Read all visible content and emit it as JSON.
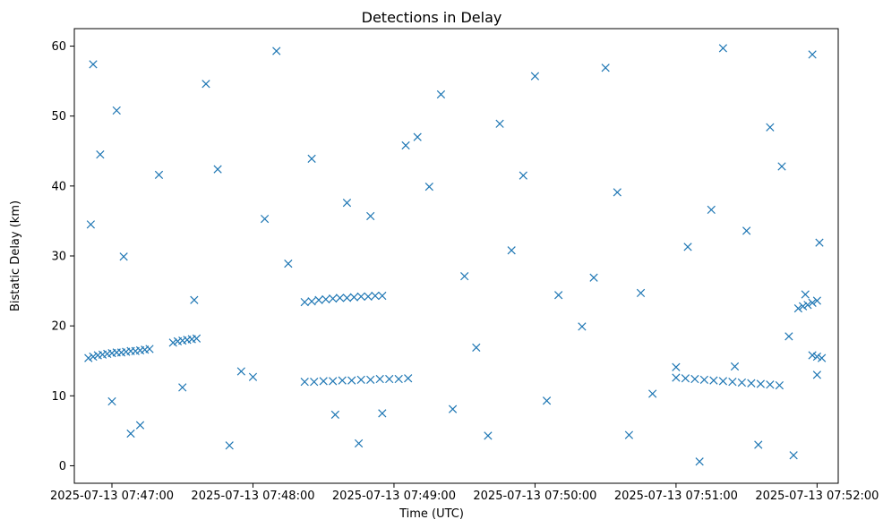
{
  "chart_data": {
    "type": "scatter",
    "title": "Detections in Delay",
    "xlabel": "Time (UTC)",
    "ylabel": "Bistatic Delay (km)",
    "marker": "x",
    "color": "#1f77b4",
    "grid": false,
    "legend": "none",
    "xlim": [
      "2025-07-13 07:46:44",
      "2025-07-13 07:52:09"
    ],
    "ylim": [
      -2.5,
      62.5
    ],
    "x_ticks": [
      "2025-07-13 07:47:00",
      "2025-07-13 07:48:00",
      "2025-07-13 07:49:00",
      "2025-07-13 07:50:00",
      "2025-07-13 07:51:00",
      "2025-07-13 07:52:00"
    ],
    "y_ticks": [
      "0",
      "10",
      "20",
      "30",
      "40",
      "50",
      "60"
    ],
    "series": [
      {
        "x": [
          "2025-07-13 07:46:50",
          "2025-07-13 07:46:52",
          "2025-07-13 07:46:54",
          "2025-07-13 07:46:56",
          "2025-07-13 07:46:58",
          "2025-07-13 07:47:00",
          "2025-07-13 07:47:02",
          "2025-07-13 07:47:04",
          "2025-07-13 07:47:06",
          "2025-07-13 07:47:08",
          "2025-07-13 07:47:10",
          "2025-07-13 07:47:12",
          "2025-07-13 07:47:14",
          "2025-07-13 07:47:16",
          "2025-07-13 07:47:26",
          "2025-07-13 07:47:28",
          "2025-07-13 07:47:30",
          "2025-07-13 07:47:32",
          "2025-07-13 07:47:34",
          "2025-07-13 07:47:36",
          "2025-07-13 07:48:22",
          "2025-07-13 07:48:25",
          "2025-07-13 07:48:28",
          "2025-07-13 07:48:31",
          "2025-07-13 07:48:34",
          "2025-07-13 07:48:37",
          "2025-07-13 07:48:40",
          "2025-07-13 07:48:43",
          "2025-07-13 07:48:46",
          "2025-07-13 07:48:49",
          "2025-07-13 07:48:52",
          "2025-07-13 07:48:55",
          "2025-07-13 07:48:22",
          "2025-07-13 07:48:26",
          "2025-07-13 07:48:30",
          "2025-07-13 07:48:34",
          "2025-07-13 07:48:38",
          "2025-07-13 07:48:42",
          "2025-07-13 07:48:46",
          "2025-07-13 07:48:50",
          "2025-07-13 07:48:54",
          "2025-07-13 07:48:58",
          "2025-07-13 07:49:02",
          "2025-07-13 07:49:06",
          "2025-07-13 07:51:00",
          "2025-07-13 07:51:04",
          "2025-07-13 07:51:08",
          "2025-07-13 07:51:12",
          "2025-07-13 07:51:16",
          "2025-07-13 07:51:20",
          "2025-07-13 07:51:24",
          "2025-07-13 07:51:28",
          "2025-07-13 07:51:32",
          "2025-07-13 07:51:36",
          "2025-07-13 07:51:40",
          "2025-07-13 07:51:44",
          "2025-07-13 07:51:52",
          "2025-07-13 07:51:54",
          "2025-07-13 07:51:56",
          "2025-07-13 07:51:58",
          "2025-07-13 07:52:00",
          "2025-07-13 07:51:58",
          "2025-07-13 07:52:00",
          "2025-07-13 07:52:02",
          "2025-07-13 07:46:52",
          "2025-07-13 07:47:02",
          "2025-07-13 07:47:40",
          "2025-07-13 07:48:10",
          "2025-07-13 07:49:05",
          "2025-07-13 07:49:20",
          "2025-07-13 07:49:45",
          "2025-07-13 07:50:00",
          "2025-07-13 07:50:30",
          "2025-07-13 07:51:20",
          "2025-07-13 07:51:40",
          "2025-07-13 07:51:58",
          "2025-07-13 07:46:51",
          "2025-07-13 07:47:20",
          "2025-07-13 07:48:05",
          "2025-07-13 07:48:40",
          "2025-07-13 07:49:15",
          "2025-07-13 07:49:50",
          "2025-07-13 07:50:25",
          "2025-07-13 07:51:05",
          "2025-07-13 07:51:30",
          "2025-07-13 07:52:01",
          "2025-07-13 07:47:05",
          "2025-07-13 07:47:35",
          "2025-07-13 07:48:15",
          "2025-07-13 07:48:50",
          "2025-07-13 07:49:30",
          "2025-07-13 07:50:10",
          "2025-07-13 07:50:45",
          "2025-07-13 07:51:25",
          "2025-07-13 07:51:55",
          "2025-07-13 07:47:08",
          "2025-07-13 07:47:50",
          "2025-07-13 07:48:45",
          "2025-07-13 07:49:40",
          "2025-07-13 07:50:40",
          "2025-07-13 07:51:10",
          "2025-07-13 07:51:50",
          "2025-07-13 07:47:00",
          "2025-07-13 07:47:30",
          "2025-07-13 07:48:00",
          "2025-07-13 07:48:35",
          "2025-07-13 07:49:25",
          "2025-07-13 07:50:05",
          "2025-07-13 07:50:50",
          "2025-07-13 07:51:35",
          "2025-07-13 07:52:00",
          "2025-07-13 07:46:55",
          "2025-07-13 07:47:45",
          "2025-07-13 07:48:25",
          "2025-07-13 07:49:10",
          "2025-07-13 07:49:55",
          "2025-07-13 07:50:35",
          "2025-07-13 07:51:15",
          "2025-07-13 07:51:45",
          "2025-07-13 07:47:12",
          "2025-07-13 07:47:55",
          "2025-07-13 07:48:55",
          "2025-07-13 07:49:35",
          "2025-07-13 07:50:20",
          "2025-07-13 07:51:00",
          "2025-07-13 07:51:48"
        ],
        "y": [
          15.4,
          15.6,
          15.8,
          15.9,
          16.0,
          16.1,
          16.2,
          16.2,
          16.3,
          16.4,
          16.4,
          16.5,
          16.6,
          16.7,
          17.6,
          17.8,
          17.9,
          18.0,
          18.1,
          18.2,
          23.4,
          23.5,
          23.7,
          23.8,
          23.9,
          24.0,
          24.0,
          24.1,
          24.2,
          24.2,
          24.3,
          24.3,
          12.0,
          12.0,
          12.1,
          12.1,
          12.2,
          12.2,
          12.3,
          12.3,
          12.4,
          12.4,
          12.4,
          12.5,
          12.6,
          12.5,
          12.4,
          12.3,
          12.2,
          12.1,
          12.0,
          11.9,
          11.8,
          11.7,
          11.6,
          11.5,
          22.5,
          22.8,
          23.0,
          23.3,
          23.6,
          15.8,
          15.6,
          15.4,
          57.4,
          50.8,
          54.6,
          59.3,
          45.8,
          53.1,
          48.9,
          55.7,
          56.9,
          59.7,
          48.4,
          58.8,
          34.5,
          41.6,
          35.3,
          37.6,
          39.9,
          30.8,
          26.9,
          31.3,
          33.6,
          31.9,
          29.9,
          23.7,
          28.9,
          35.7,
          27.1,
          24.4,
          24.7,
          14.2,
          24.5,
          4.6,
          2.9,
          3.2,
          4.3,
          4.4,
          0.6,
          1.5,
          9.2,
          11.2,
          12.7,
          7.3,
          8.1,
          9.3,
          10.3,
          3.0,
          13.0,
          44.5,
          42.4,
          43.9,
          47.0,
          41.5,
          39.1,
          36.6,
          42.8,
          5.8,
          13.5,
          7.5,
          16.9,
          19.9,
          14.1,
          18.5
        ]
      }
    ]
  }
}
